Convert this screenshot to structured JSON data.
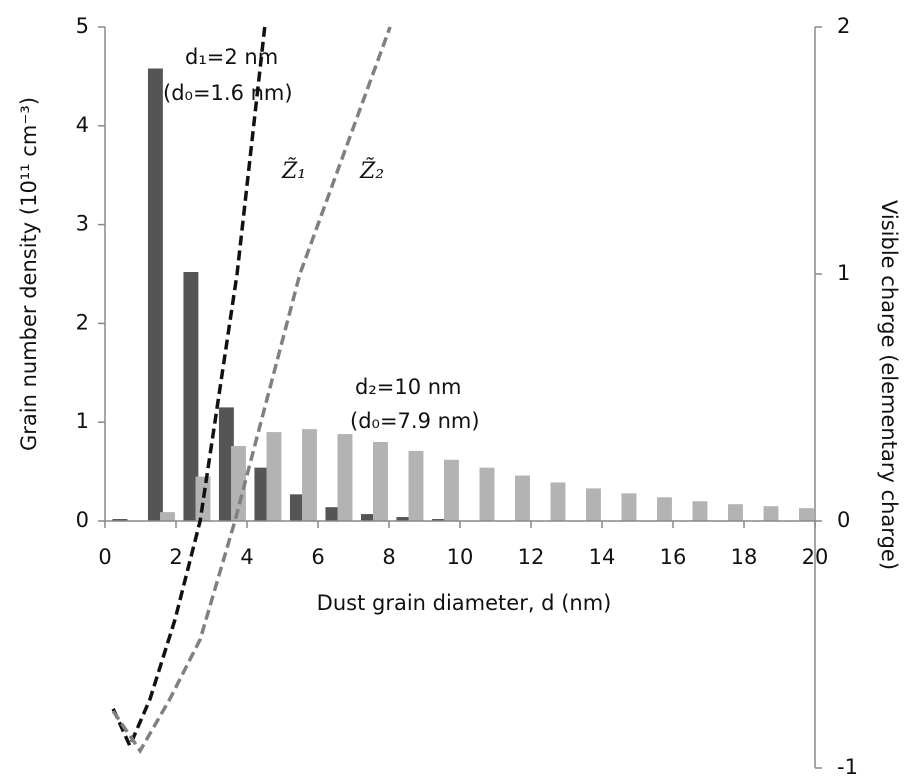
{
  "chart_data": {
    "type": "bar_line",
    "x_label": "Dust grain diameter, d (nm)",
    "y_label": "Grain number density (10¹¹ cm⁻³)",
    "y2_label": "Visible charge (elementary charge)",
    "x": [
      0.5,
      1.5,
      2.5,
      3.5,
      4.5,
      5.5,
      6.5,
      7.5,
      8.5,
      9.5,
      10.5,
      11.5,
      12.5,
      13.5,
      14.5,
      15.5,
      16.5,
      17.5,
      18.5,
      19.5
    ],
    "bar_series": [
      {
        "color": "#555555",
        "values": [
          0.02,
          4.58,
          2.52,
          1.15,
          0.54,
          0.27,
          0.14,
          0.07,
          0.04,
          0.02,
          0,
          0,
          0,
          0,
          0,
          0,
          0,
          0,
          0,
          0
        ]
      },
      {
        "color": "#b3b3b3",
        "values": [
          0,
          0.09,
          0.45,
          0.76,
          0.9,
          0.93,
          0.88,
          0.8,
          0.71,
          0.62,
          0.54,
          0.46,
          0.39,
          0.33,
          0.28,
          0.24,
          0.2,
          0.17,
          0.15,
          0.13
        ]
      }
    ],
    "line_series": [
      {
        "name": "Z̃₁",
        "color": "#111111",
        "axis": "y2",
        "x": [
          0.23,
          0.7,
          1.27,
          1.97,
          2.68,
          3.72,
          4.5
        ],
        "values": [
          -0.76,
          -0.91,
          -0.72,
          -0.4,
          0,
          1,
          2
        ]
      },
      {
        "name": "Z̃₂",
        "color": "#808080",
        "axis": "y2",
        "x": [
          0.23,
          0.99,
          1.83,
          2.68,
          3.66,
          5.49,
          8.03
        ],
        "values": [
          -0.77,
          -0.93,
          -0.72,
          -0.48,
          0,
          1,
          2
        ]
      }
    ],
    "annotations": [
      "d₁=2 nm",
      "(d₀=1.6 nm)",
      "d₂=10 nm",
      "(d₀=7.9 nm)"
    ],
    "xlim": [
      0,
      20
    ],
    "xticks": [
      0,
      2,
      4,
      6,
      8,
      10,
      12,
      14,
      16,
      18,
      20
    ],
    "ylim": [
      0,
      5
    ],
    "yticks": [
      0,
      1,
      2,
      3,
      4,
      5
    ],
    "y2lim": [
      -1,
      2
    ],
    "y2ticks": [
      -1,
      0,
      1,
      2
    ]
  }
}
